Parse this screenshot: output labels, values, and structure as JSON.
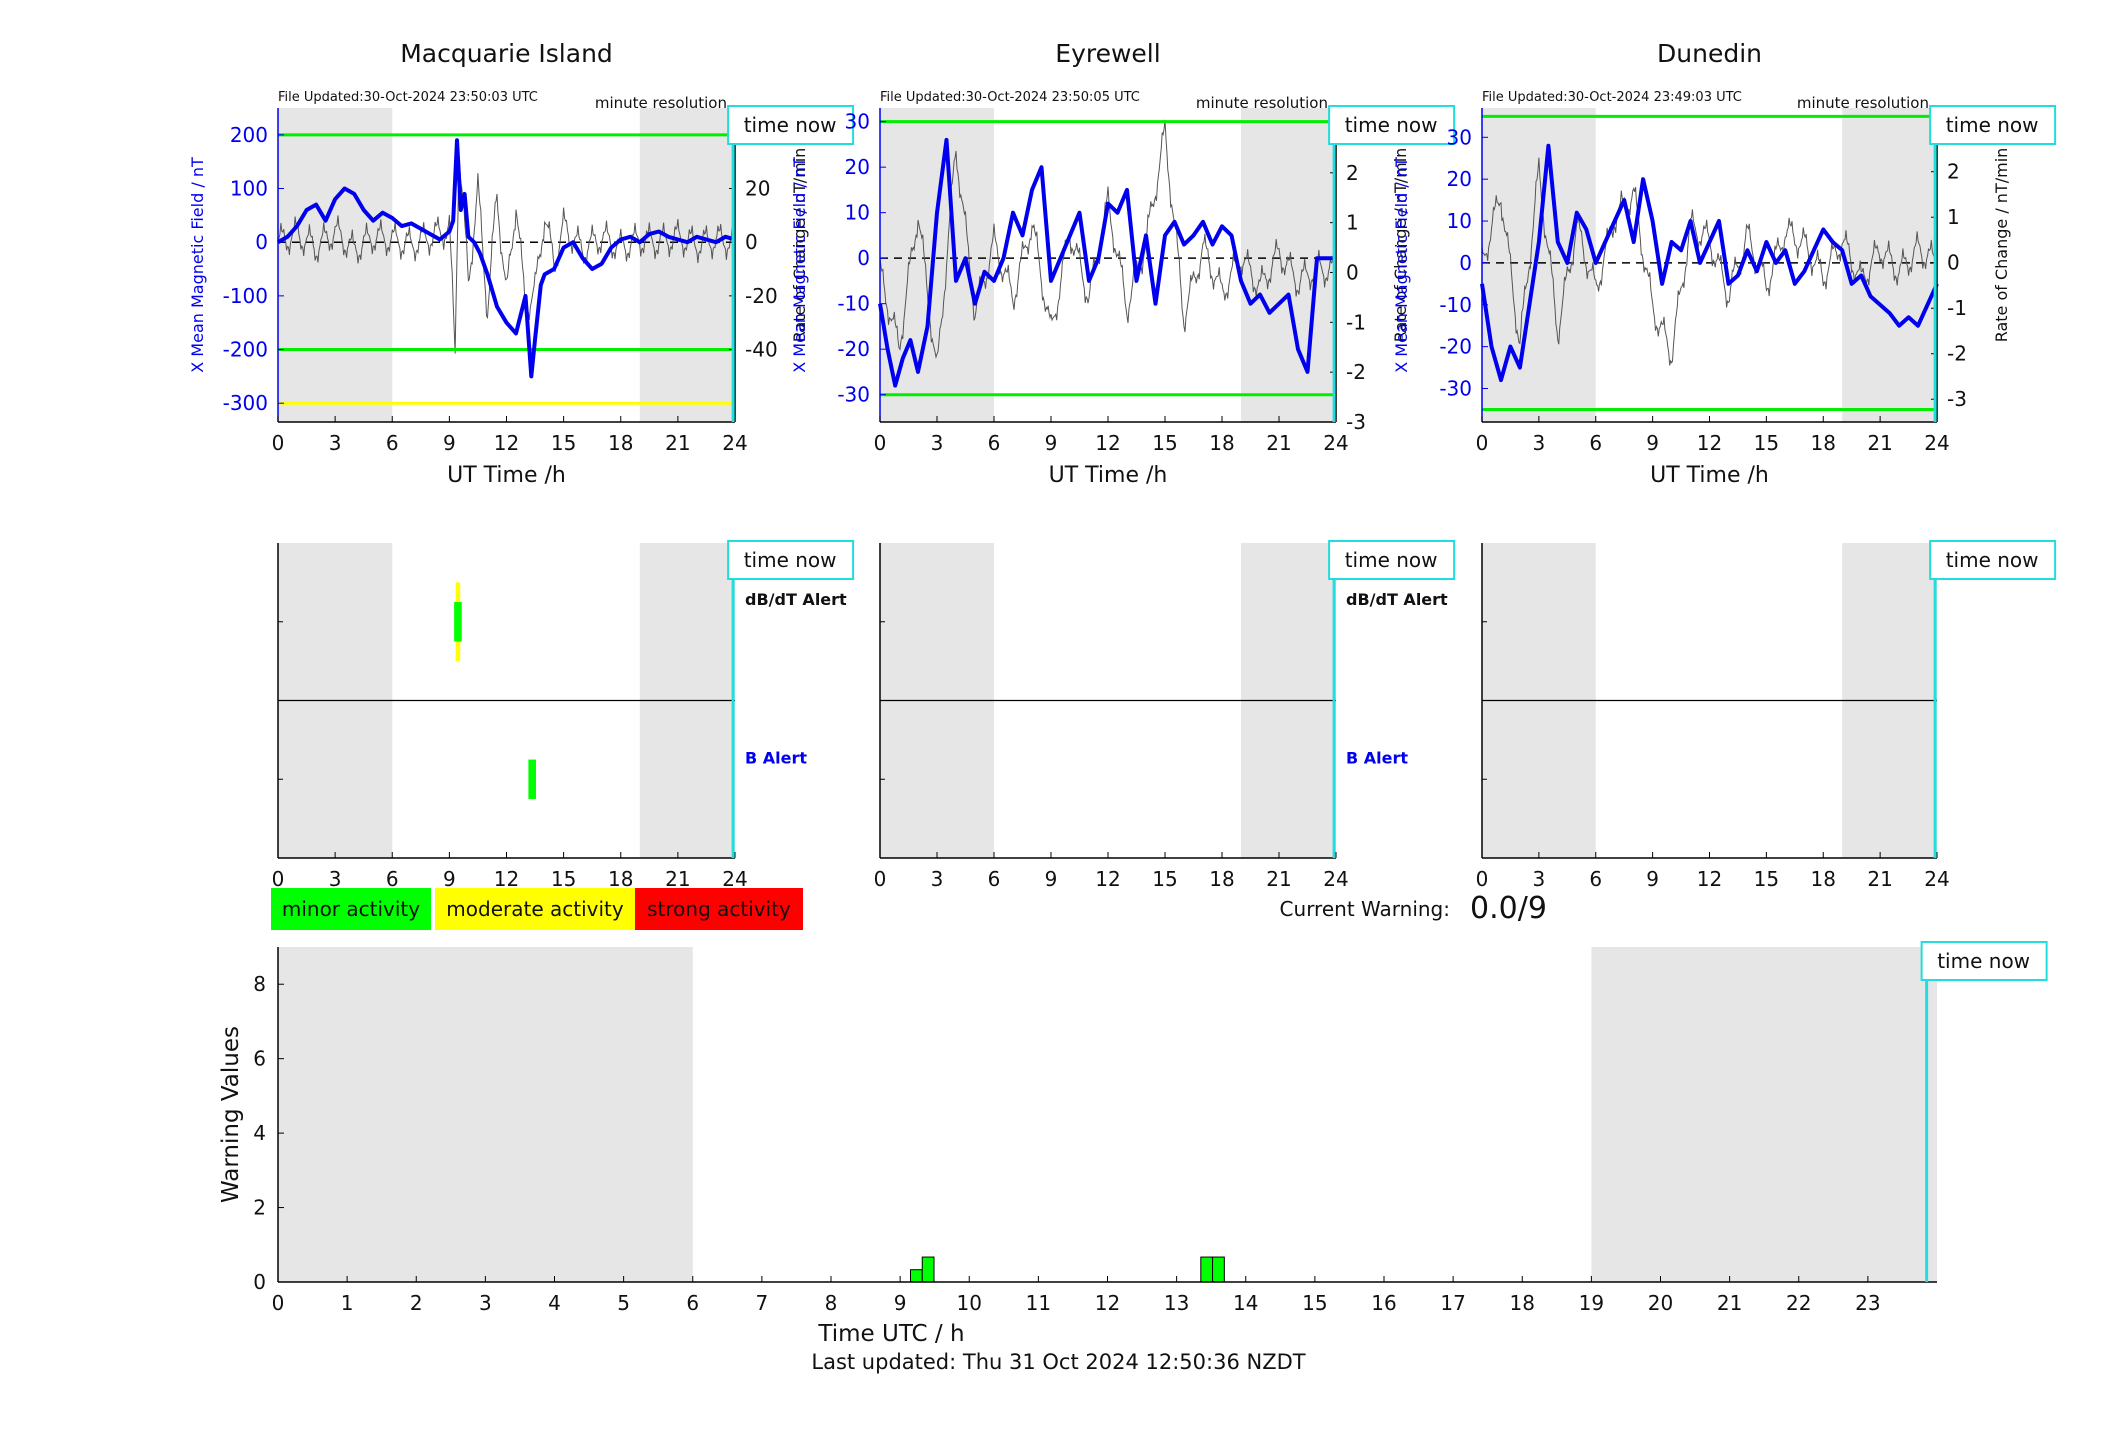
{
  "colors": {
    "night_shade": "#e6e6e6",
    "b_field": "#0000ee",
    "rate_trace": "#555555",
    "threshold_green": "#00ee00",
    "threshold_yellow": "#ffff00",
    "time_now": "#22dddd",
    "minor": "#00ff00",
    "moderate": "#ffff00",
    "strong": "#ff0000",
    "axis_left": "#0000ee"
  },
  "labels": {
    "file_updated_prefix": "File Updated:",
    "minute_resolution": "minute resolution",
    "time_now": "time now",
    "dbdt_alert": "dB/dT Alert",
    "b_alert": "B Alert",
    "x_axis": "UT Time /h",
    "y_left": "X Mean Magnetic Field / nT",
    "y_right": "Rate of Change / nT/min"
  },
  "legend": {
    "minor": "minor activity",
    "moderate": "moderate activity",
    "strong": "strong activity"
  },
  "current_warning": {
    "label": "Current Warning:",
    "value": "0.0/9"
  },
  "footer": {
    "last_updated": "Last updated: Thu 31 Oct 2024 12:50:36 NZDT"
  },
  "chart_data": [
    {
      "type": "line",
      "title": "Macquarie Island",
      "file_updated": "30-Oct-2024 23:50:03 UTC",
      "xlabel": "UT Time /h",
      "ylabel": "X Mean Magnetic Field / nT",
      "y2label": "Rate of Change / nT/min",
      "xlim": [
        0,
        24
      ],
      "xticks": [
        0,
        3,
        6,
        9,
        12,
        15,
        18,
        21,
        24
      ],
      "ylim": [
        -335,
        250
      ],
      "yticks": [
        200,
        100,
        0,
        -100,
        -200,
        -300
      ],
      "y2lim": [
        -67,
        50
      ],
      "y2ticks": [
        40,
        20,
        0,
        -20,
        -40
      ],
      "night_shade": [
        [
          0,
          6
        ],
        [
          19,
          24
        ]
      ],
      "thresholds": [
        {
          "y": 200,
          "color": "green"
        },
        {
          "y": -200,
          "color": "green"
        },
        {
          "y": -300,
          "color": "yellow"
        }
      ],
      "time_now": 23.9,
      "series": [
        {
          "axis": "left",
          "x": [
            0,
            0.5,
            1,
            1.5,
            2,
            2.5,
            3,
            3.5,
            4,
            4.5,
            5,
            5.5,
            6,
            6.5,
            7,
            7.5,
            8,
            8.5,
            9,
            9.2,
            9.4,
            9.6,
            9.8,
            10,
            10.3,
            10.6,
            11,
            11.5,
            12,
            12.5,
            13,
            13.3,
            13.5,
            13.8,
            14,
            14.5,
            15,
            15.5,
            16,
            16.5,
            17,
            17.5,
            18,
            18.5,
            19,
            19.5,
            20,
            20.5,
            21,
            21.5,
            22,
            22.5,
            23,
            23.5,
            24
          ],
          "y": [
            0,
            10,
            30,
            60,
            70,
            40,
            80,
            100,
            90,
            60,
            40,
            55,
            45,
            30,
            35,
            25,
            15,
            5,
            20,
            40,
            190,
            60,
            90,
            10,
            0,
            -20,
            -60,
            -120,
            -150,
            -170,
            -100,
            -250,
            -180,
            -80,
            -60,
            -50,
            -10,
            0,
            -30,
            -50,
            -40,
            -10,
            5,
            10,
            0,
            15,
            20,
            10,
            5,
            0,
            10,
            5,
            0,
            10,
            5
          ]
        },
        {
          "axis": "right",
          "x": [
            0,
            1,
            2,
            3,
            4,
            5,
            6,
            7,
            8,
            9,
            9.3,
            9.5,
            10,
            10.5,
            11,
            11.5,
            12,
            12.5,
            13,
            13.5,
            14,
            14.5,
            15,
            16,
            17,
            18,
            19,
            20,
            21,
            22,
            23,
            24
          ],
          "y": [
            0,
            3,
            -2,
            4,
            -3,
            2,
            1,
            -1,
            2,
            5,
            -40,
            35,
            -15,
            20,
            -25,
            18,
            -20,
            15,
            -25,
            -18,
            10,
            -8,
            6,
            -3,
            2,
            -2,
            1,
            0,
            2,
            -1,
            1,
            0
          ]
        }
      ]
    },
    {
      "type": "line",
      "title": "Eyrewell",
      "file_updated": "30-Oct-2024 23:50:05 UTC",
      "xlabel": "UT Time /h",
      "ylabel": "X Mean Magnetic Field / nT",
      "y2label": "Rate of Change / nT/min",
      "xlim": [
        0,
        24
      ],
      "xticks": [
        0,
        3,
        6,
        9,
        12,
        15,
        18,
        21,
        24
      ],
      "ylim": [
        -36,
        33
      ],
      "yticks": [
        30,
        20,
        10,
        0,
        -10,
        -20,
        -30
      ],
      "y2lim": [
        -3.0,
        3.3
      ],
      "y2ticks": [
        3,
        2,
        1,
        0,
        -1,
        -2,
        -3
      ],
      "night_shade": [
        [
          0,
          6
        ],
        [
          19,
          24
        ]
      ],
      "thresholds": [
        {
          "y": 30,
          "color": "green"
        },
        {
          "y": -30,
          "color": "green"
        }
      ],
      "time_now": 23.9,
      "series": [
        {
          "axis": "left",
          "x": [
            0,
            0.4,
            0.8,
            1.2,
            1.6,
            2,
            2.5,
            3,
            3.5,
            4,
            4.5,
            5,
            5.5,
            6,
            6.5,
            7,
            7.5,
            8,
            8.5,
            9,
            9.5,
            10,
            10.5,
            11,
            11.5,
            12,
            12.5,
            13,
            13.5,
            14,
            14.5,
            15,
            15.5,
            16,
            16.5,
            17,
            17.5,
            18,
            18.5,
            19,
            19.5,
            20,
            20.5,
            21,
            21.5,
            22,
            22.5,
            23,
            23.5,
            24
          ],
          "y": [
            -10,
            -20,
            -28,
            -22,
            -18,
            -25,
            -15,
            10,
            26,
            -5,
            0,
            -10,
            -3,
            -5,
            0,
            10,
            5,
            15,
            20,
            -5,
            0,
            5,
            10,
            -5,
            0,
            12,
            10,
            15,
            -5,
            5,
            -10,
            5,
            8,
            3,
            5,
            8,
            3,
            7,
            5,
            -5,
            -10,
            -8,
            -12,
            -10,
            -8,
            -20,
            -25,
            0,
            0,
            0
          ]
        },
        {
          "axis": "right",
          "x": [
            0,
            1,
            2,
            3,
            4,
            5,
            6,
            7,
            8,
            9,
            10,
            11,
            12,
            13,
            14,
            15,
            16,
            17,
            18,
            19,
            20,
            21,
            22,
            23,
            24
          ],
          "y": [
            0,
            -1.5,
            1.2,
            -2,
            2.5,
            -0.8,
            0.6,
            -0.5,
            1,
            -1.2,
            0.8,
            -0.5,
            1.4,
            -0.7,
            0.6,
            2.8,
            -0.9,
            0.5,
            -0.4,
            0.3,
            -0.3,
            0.4,
            -0.2,
            0.1,
            0
          ]
        }
      ]
    },
    {
      "type": "line",
      "title": "Dunedin",
      "file_updated": "30-Oct-2024 23:49:03 UTC",
      "xlabel": "UT Time /h",
      "ylabel": "X Mean Magnetic Field / nT",
      "y2label": "Rate of Change / nT/min",
      "xlim": [
        0,
        24
      ],
      "xticks": [
        0,
        3,
        6,
        9,
        12,
        15,
        18,
        21,
        24
      ],
      "ylim": [
        -38,
        37
      ],
      "yticks": [
        30,
        20,
        10,
        0,
        -10,
        -20,
        -30
      ],
      "y2lim": [
        -3.5,
        3.4
      ],
      "y2ticks": [
        3,
        2,
        1,
        0,
        -1,
        -2,
        -3
      ],
      "night_shade": [
        [
          0,
          6
        ],
        [
          19,
          24
        ]
      ],
      "thresholds": [
        {
          "y": 35,
          "color": "green"
        },
        {
          "y": -35,
          "color": "green"
        }
      ],
      "time_now": 23.9,
      "series": [
        {
          "axis": "left",
          "x": [
            0,
            0.5,
            1,
            1.5,
            2,
            2.5,
            3,
            3.5,
            4,
            4.5,
            5,
            5.5,
            6,
            6.5,
            7,
            7.5,
            8,
            8.5,
            9,
            9.5,
            10,
            10.5,
            11,
            11.5,
            12,
            12.5,
            13,
            13.5,
            14,
            14.5,
            15,
            15.5,
            16,
            16.5,
            17,
            17.5,
            18,
            18.5,
            19,
            19.5,
            20,
            20.5,
            21,
            21.5,
            22,
            22.5,
            23,
            23.5,
            24
          ],
          "y": [
            -5,
            -20,
            -28,
            -20,
            -25,
            -10,
            5,
            28,
            5,
            0,
            12,
            8,
            0,
            5,
            10,
            15,
            5,
            20,
            10,
            -5,
            5,
            3,
            10,
            0,
            5,
            10,
            -5,
            -3,
            3,
            -2,
            5,
            0,
            3,
            -5,
            -2,
            3,
            8,
            5,
            3,
            -5,
            -3,
            -8,
            -10,
            -12,
            -15,
            -13,
            -15,
            -10,
            -5
          ]
        },
        {
          "axis": "right",
          "x": [
            0,
            1,
            2,
            3,
            4,
            5,
            6,
            7,
            8,
            9,
            10,
            11,
            12,
            13,
            14,
            15,
            16,
            17,
            18,
            19,
            20,
            21,
            22,
            23,
            24
          ],
          "y": [
            0,
            1.5,
            -1.8,
            2,
            -1.5,
            0.8,
            -0.6,
            1,
            1.5,
            -1,
            -2,
            0.8,
            0.5,
            -0.7,
            0.6,
            -0.5,
            0.7,
            0.4,
            -0.3,
            0.5,
            -0.4,
            0.3,
            -0.2,
            0.3,
            0
          ]
        }
      ]
    },
    {
      "type": "bar",
      "title": "",
      "panel": "alerts",
      "station": "Macquarie Island",
      "rows": [
        "dB/dT Alert",
        "B Alert"
      ],
      "xlim": [
        0,
        24
      ],
      "xticks": [
        0,
        3,
        6,
        9,
        12,
        15,
        18,
        21,
        24
      ],
      "night_shade": [
        [
          0,
          6
        ],
        [
          19,
          24
        ]
      ],
      "time_now": 23.9,
      "alerts": [
        {
          "row": "dB/dT Alert",
          "start": 9.25,
          "end": 9.65,
          "level": "moderate",
          "span": 1.0
        },
        {
          "row": "dB/dT Alert",
          "start": 9.25,
          "end": 9.65,
          "level": "minor",
          "span": 0.5
        },
        {
          "row": "B Alert",
          "start": 13.15,
          "end": 13.55,
          "level": "minor",
          "span": 0.5
        }
      ]
    },
    {
      "type": "bar",
      "title": "",
      "panel": "alerts",
      "station": "Eyrewell",
      "rows": [
        "dB/dT Alert",
        "B Alert"
      ],
      "xlim": [
        0,
        24
      ],
      "xticks": [
        0,
        3,
        6,
        9,
        12,
        15,
        18,
        21,
        24
      ],
      "night_shade": [
        [
          0,
          6
        ],
        [
          19,
          24
        ]
      ],
      "time_now": 23.9,
      "alerts": []
    },
    {
      "type": "bar",
      "title": "",
      "panel": "alerts",
      "station": "Dunedin",
      "rows": [],
      "xlim": [
        0,
        24
      ],
      "xticks": [
        0,
        3,
        6,
        9,
        12,
        15,
        18,
        21,
        24
      ],
      "night_shade": [
        [
          0,
          6
        ],
        [
          19,
          24
        ]
      ],
      "time_now": 23.9,
      "alerts": []
    },
    {
      "type": "bar",
      "title": "",
      "xlabel": "Time UTC / h",
      "ylabel": "Warning Values",
      "xlim": [
        0,
        24
      ],
      "xticks": [
        0,
        1,
        2,
        3,
        4,
        5,
        6,
        7,
        8,
        9,
        10,
        11,
        12,
        13,
        14,
        15,
        16,
        17,
        18,
        19,
        20,
        21,
        22,
        23
      ],
      "ylim": [
        0,
        9
      ],
      "yticks": [
        0,
        2,
        4,
        6,
        8
      ],
      "night_shade": [
        [
          0,
          6
        ],
        [
          19,
          24
        ]
      ],
      "time_now": 23.85,
      "bars": [
        {
          "x": 9.15,
          "width": 0.17,
          "value": 0.33
        },
        {
          "x": 9.32,
          "width": 0.17,
          "value": 0.67
        },
        {
          "x": 13.35,
          "width": 0.17,
          "value": 0.67
        },
        {
          "x": 13.52,
          "width": 0.17,
          "value": 0.67
        }
      ]
    }
  ]
}
